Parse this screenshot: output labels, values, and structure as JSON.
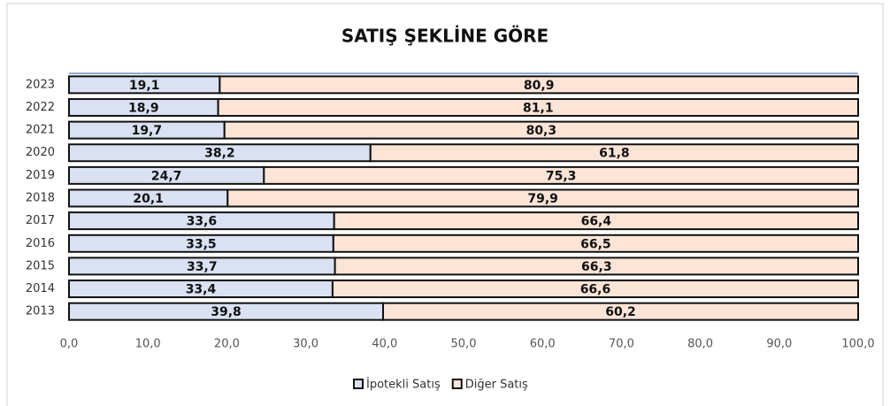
{
  "chart_data": {
    "type": "stacked_barh",
    "title": "SATIŞ ŞEKLİNE GÖRE",
    "categories": [
      "2023",
      "2022",
      "2021",
      "2020",
      "2019",
      "2018",
      "2017",
      "2016",
      "2015",
      "2014",
      "2013"
    ],
    "series": [
      {
        "name": "İpotekli Satış",
        "color": "#d9e1f2",
        "values": [
          19.1,
          18.9,
          19.7,
          38.2,
          24.7,
          20.1,
          33.6,
          33.5,
          33.7,
          33.4,
          39.8
        ],
        "value_labels": [
          "19,1",
          "18,9",
          "19,7",
          "38,2",
          "24,7",
          "20,1",
          "33,6",
          "33,5",
          "33,7",
          "33,4",
          "39,8"
        ]
      },
      {
        "name": "Diğer Satış",
        "color": "#fce4d6",
        "values": [
          80.9,
          81.1,
          80.3,
          61.8,
          75.3,
          79.9,
          66.4,
          66.5,
          66.3,
          66.6,
          60.2
        ],
        "value_labels": [
          "80,9",
          "81,1",
          "80,3",
          "61,8",
          "75,3",
          "79,9",
          "66,4",
          "66,5",
          "66,3",
          "66,6",
          "60,2"
        ]
      }
    ],
    "xlim": [
      0,
      100
    ],
    "xticks": [
      {
        "value": 0,
        "label": "0,0"
      },
      {
        "value": 10,
        "label": "10,0"
      },
      {
        "value": 20,
        "label": "20,0"
      },
      {
        "value": 30,
        "label": "30,0"
      },
      {
        "value": 40,
        "label": "40,0"
      },
      {
        "value": 50,
        "label": "50,0"
      },
      {
        "value": 60,
        "label": "60,0"
      },
      {
        "value": 70,
        "label": "70,0"
      },
      {
        "value": 80,
        "label": "80,0"
      },
      {
        "value": 90,
        "label": "90,0"
      },
      {
        "value": 100,
        "label": "100,0"
      }
    ],
    "legend": "bottom"
  }
}
